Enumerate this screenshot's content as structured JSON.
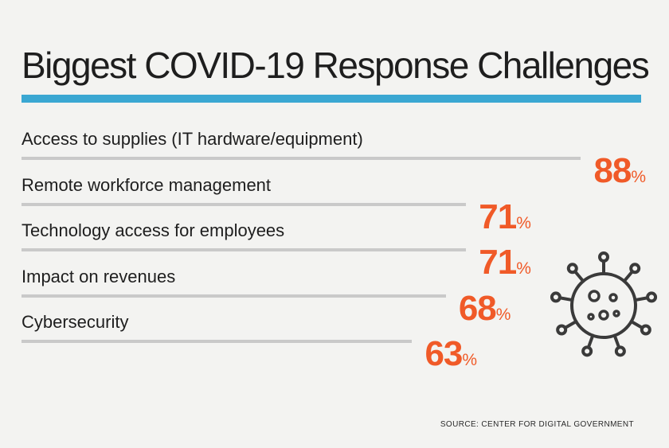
{
  "title": "Biggest COVID-19 Response Challenges",
  "source": "SOURCE: CENTER FOR DIGITAL GOVERNMENT",
  "icon": "virus-icon",
  "colors": {
    "accent_rule": "#3aa7d2",
    "value_text": "#f05a28",
    "bar": "#c9c9c9",
    "icon_stroke": "#3a3a3a"
  },
  "chart_data": {
    "type": "bar",
    "orientation": "horizontal",
    "title": "Biggest COVID-19 Response Challenges",
    "unit": "%",
    "categories": [
      "Access to supplies (IT hardware/equipment)",
      "Remote workforce management",
      "Technology access for employees",
      "Impact on revenues",
      "Cybersecurity"
    ],
    "values": [
      88,
      71,
      71,
      68,
      63
    ],
    "xlim": [
      0,
      100
    ],
    "grid": false,
    "legend": "none"
  }
}
